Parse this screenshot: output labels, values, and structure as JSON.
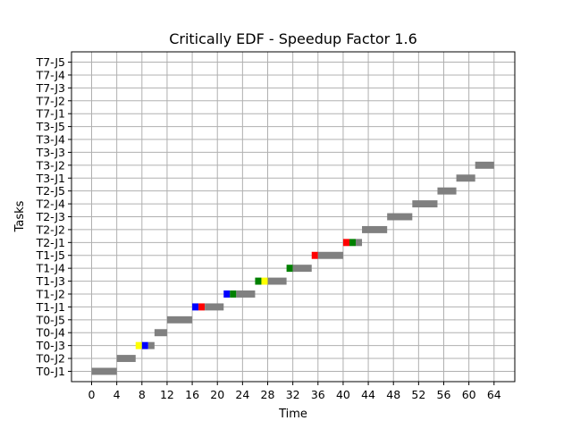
{
  "chart_data": {
    "type": "gantt",
    "title": "Critically EDF - Speedup Factor 1.6",
    "xlabel": "Time",
    "ylabel": "Tasks",
    "xlim": [
      -3.2,
      67.3
    ],
    "x_ticks": [
      0,
      4,
      8,
      12,
      16,
      20,
      24,
      28,
      32,
      36,
      40,
      44,
      48,
      52,
      56,
      60,
      64
    ],
    "grid": true,
    "rows": [
      "T0-J1",
      "T0-J2",
      "T0-J3",
      "T0-J4",
      "T0-J5",
      "T1-J1",
      "T1-J2",
      "T1-J3",
      "T1-J4",
      "T1-J5",
      "T2-J1",
      "T2-J2",
      "T2-J3",
      "T2-J4",
      "T2-J5",
      "T3-J1",
      "T3-J2",
      "T3-J3",
      "T3-J4",
      "T3-J5",
      "T7-J1",
      "T7-J2",
      "T7-J3",
      "T7-J4",
      "T7-J5"
    ],
    "colors": {
      "gray": "#808080",
      "yellow": "#ffff00",
      "blue": "#0000ff",
      "red": "#ff0000",
      "green": "#008000"
    },
    "segments": [
      {
        "row": "T0-J1",
        "start": 0,
        "end": 4,
        "color": "gray"
      },
      {
        "row": "T0-J2",
        "start": 4,
        "end": 7,
        "color": "gray"
      },
      {
        "row": "T0-J3",
        "start": 7,
        "end": 8,
        "color": "yellow"
      },
      {
        "row": "T0-J3",
        "start": 8,
        "end": 9,
        "color": "blue"
      },
      {
        "row": "T0-J3",
        "start": 9,
        "end": 10,
        "color": "gray"
      },
      {
        "row": "T0-J4",
        "start": 10,
        "end": 12,
        "color": "gray"
      },
      {
        "row": "T0-J5",
        "start": 12,
        "end": 16,
        "color": "gray"
      },
      {
        "row": "T1-J1",
        "start": 16,
        "end": 17,
        "color": "blue"
      },
      {
        "row": "T1-J1",
        "start": 17,
        "end": 18,
        "color": "red"
      },
      {
        "row": "T1-J1",
        "start": 18,
        "end": 21,
        "color": "gray"
      },
      {
        "row": "T1-J2",
        "start": 21,
        "end": 22,
        "color": "blue"
      },
      {
        "row": "T1-J2",
        "start": 22,
        "end": 23,
        "color": "green"
      },
      {
        "row": "T1-J2",
        "start": 23,
        "end": 26,
        "color": "gray"
      },
      {
        "row": "T1-J3",
        "start": 26,
        "end": 27,
        "color": "green"
      },
      {
        "row": "T1-J3",
        "start": 27,
        "end": 28,
        "color": "yellow"
      },
      {
        "row": "T1-J3",
        "start": 28,
        "end": 31,
        "color": "gray"
      },
      {
        "row": "T1-J4",
        "start": 31,
        "end": 32,
        "color": "green"
      },
      {
        "row": "T1-J4",
        "start": 32,
        "end": 35,
        "color": "gray"
      },
      {
        "row": "T1-J5",
        "start": 35,
        "end": 36,
        "color": "red"
      },
      {
        "row": "T1-J5",
        "start": 36,
        "end": 40,
        "color": "gray"
      },
      {
        "row": "T2-J1",
        "start": 40,
        "end": 41,
        "color": "red"
      },
      {
        "row": "T2-J1",
        "start": 41,
        "end": 42,
        "color": "green"
      },
      {
        "row": "T2-J1",
        "start": 42,
        "end": 43,
        "color": "gray"
      },
      {
        "row": "T2-J2",
        "start": 43,
        "end": 47,
        "color": "gray"
      },
      {
        "row": "T2-J3",
        "start": 47,
        "end": 51,
        "color": "gray"
      },
      {
        "row": "T2-J4",
        "start": 51,
        "end": 55,
        "color": "gray"
      },
      {
        "row": "T2-J5",
        "start": 55,
        "end": 58,
        "color": "gray"
      },
      {
        "row": "T3-J1",
        "start": 58,
        "end": 61,
        "color": "gray"
      },
      {
        "row": "T3-J2",
        "start": 61,
        "end": 64,
        "color": "gray"
      }
    ]
  }
}
